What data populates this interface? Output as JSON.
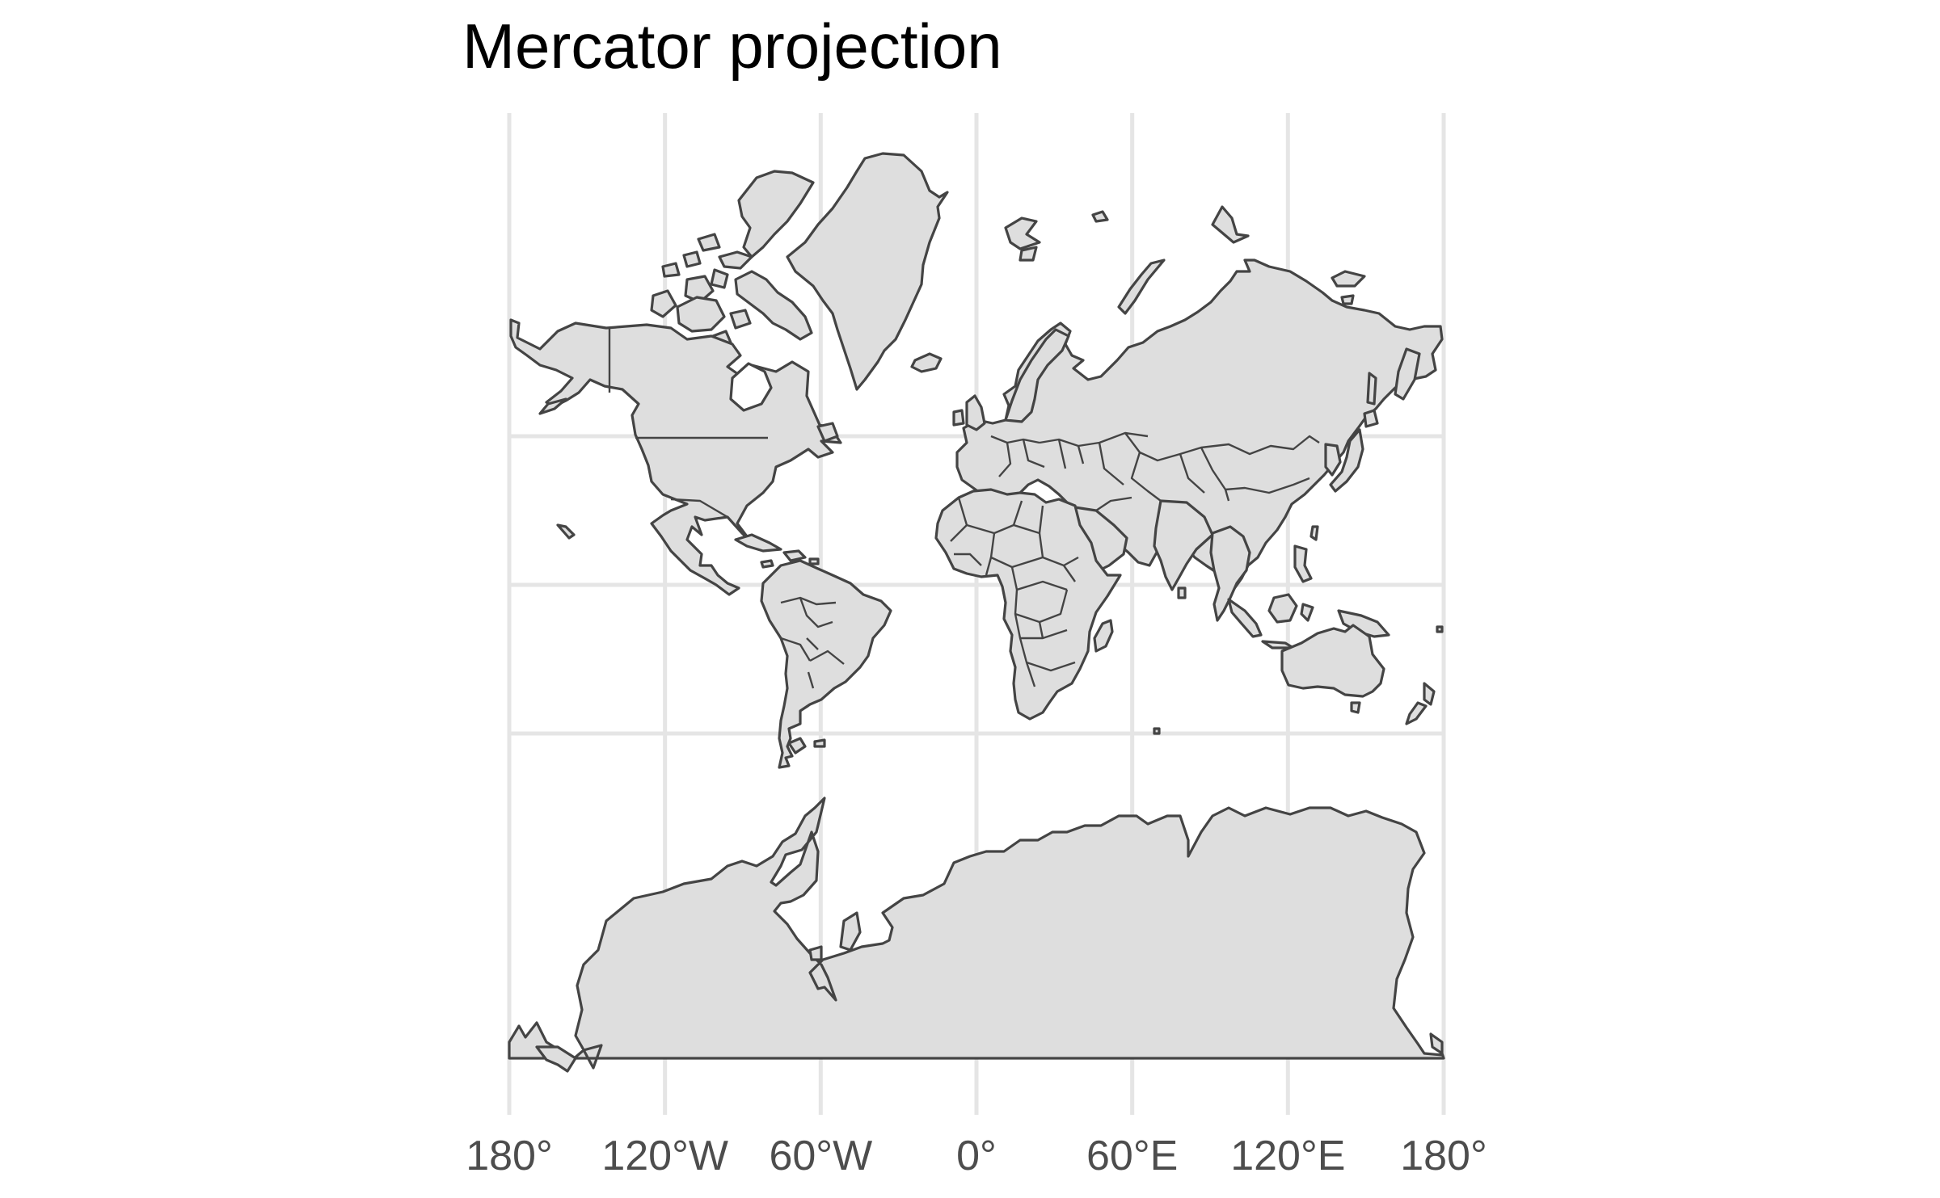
{
  "title": "Mercator projection",
  "projection": "Mercator",
  "colors": {
    "land": "#dedede",
    "outline": "#444444",
    "grid": "#e5e5e5",
    "label": "#4d4d4d",
    "background": "#ffffff"
  },
  "longitude_labels": [
    "180°",
    "120°W",
    "60°W",
    "0°",
    "60°E",
    "120°E",
    "180°"
  ],
  "longitude_values": [
    -180,
    -120,
    -60,
    0,
    60,
    120,
    180
  ],
  "latitude_gridlines": [
    50,
    0,
    -50
  ],
  "latitude_labels_shown": false
}
